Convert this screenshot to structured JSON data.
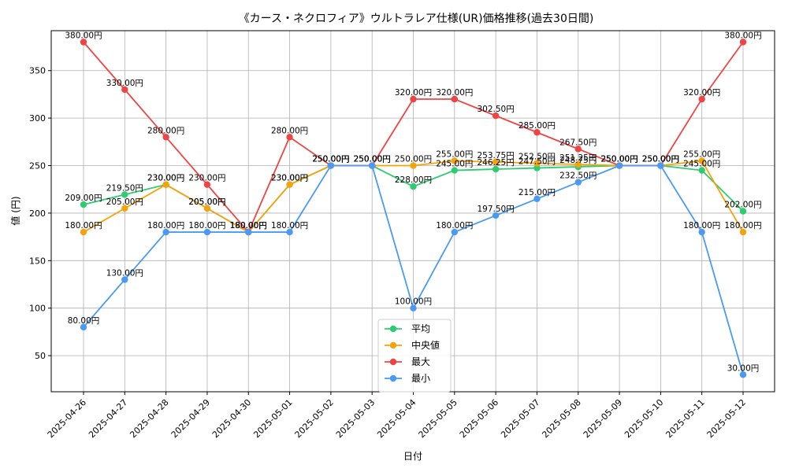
{
  "chart_data": {
    "type": "line",
    "title": "《カース・ネクロフィア》ウルトラレア仕様(UR)価格推移(過去30日間)",
    "xlabel": "日付",
    "ylabel": "値 (円)",
    "categories": [
      "2025-04-26",
      "2025-04-27",
      "2025-04-28",
      "2025-04-29",
      "2025-04-30",
      "2025-05-01",
      "2025-05-02",
      "2025-05-03",
      "2025-05-04",
      "2025-05-05",
      "2025-05-06",
      "2025-05-07",
      "2025-05-08",
      "2025-05-09",
      "2025-05-10",
      "2025-05-11",
      "2025-05-12"
    ],
    "ylim": [
      12,
      392
    ],
    "yticks": [
      50,
      100,
      150,
      200,
      250,
      300,
      350
    ],
    "grid": true,
    "legend_position": "bottom-center",
    "label_suffix": "円",
    "series": [
      {
        "name": "平均",
        "color": "#2ecc71",
        "values": [
          209.0,
          219.5,
          230.0,
          205.0,
          180.0,
          230.0,
          250.0,
          250.0,
          228.0,
          245.0,
          246.25,
          247.5,
          248.75,
          250.0,
          250.0,
          245.0,
          202.0
        ]
      },
      {
        "name": "中央値",
        "color": "#f5a30a",
        "values": [
          180.0,
          205.0,
          230.0,
          205.0,
          180.0,
          230.0,
          250.0,
          250.0,
          250.0,
          255.0,
          253.75,
          252.5,
          251.25,
          250.0,
          250.0,
          255.0,
          180.0
        ]
      },
      {
        "name": "最大",
        "color": "#ef4444",
        "values": [
          380.0,
          330.0,
          280.0,
          230.0,
          180.0,
          280.0,
          250.0,
          250.0,
          320.0,
          320.0,
          302.5,
          285.0,
          267.5,
          250.0,
          250.0,
          320.0,
          380.0
        ]
      },
      {
        "name": "最小",
        "color": "#4a9af5",
        "values": [
          80.0,
          130.0,
          180.0,
          180.0,
          180.0,
          180.0,
          250.0,
          250.0,
          100.0,
          180.0,
          197.5,
          215.0,
          232.5,
          250.0,
          250.0,
          180.0,
          30.0
        ]
      }
    ]
  }
}
